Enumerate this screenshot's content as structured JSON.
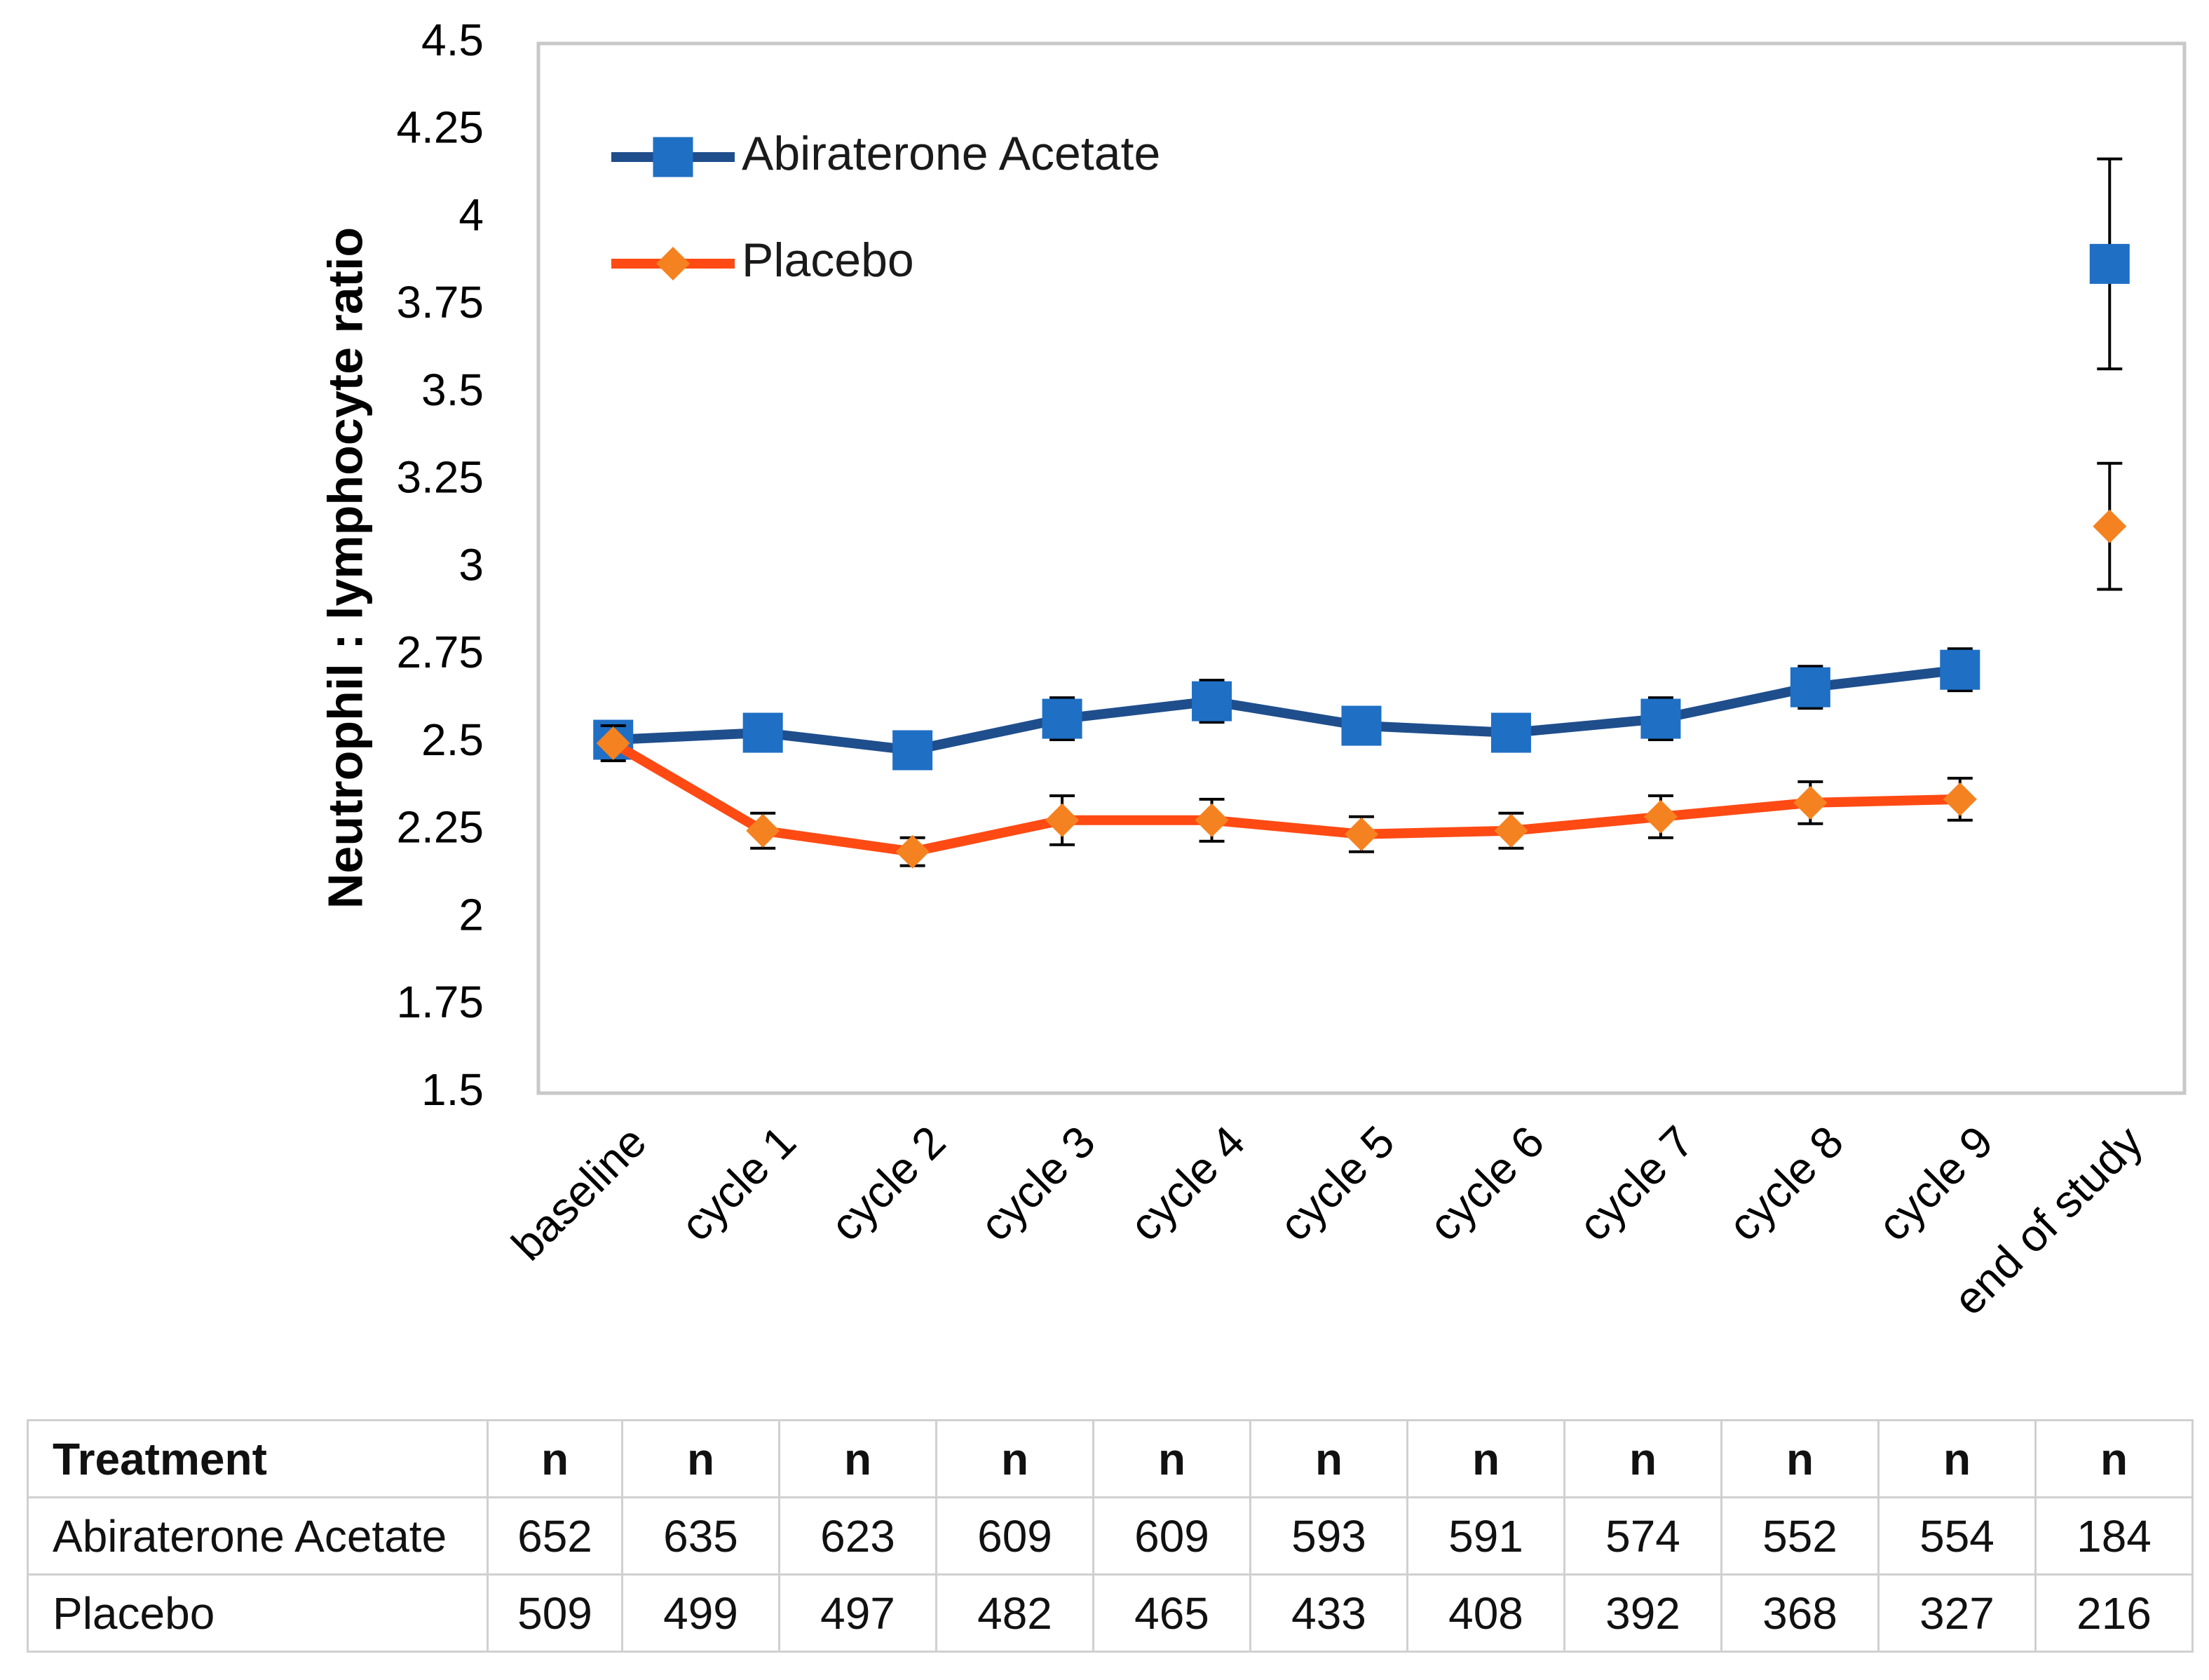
{
  "chart_data": {
    "type": "line",
    "title": "",
    "xlabel": "",
    "ylabel": "Neutrophil : lymphocyte ratio",
    "ylim": [
      1.5,
      4.5
    ],
    "yticks": [
      "4.5",
      "4.25",
      "4",
      "3.75",
      "3.5",
      "3.25",
      "3",
      "2.75",
      "2.5",
      "2.25",
      "2",
      "1.75",
      "1.5"
    ],
    "categories": [
      "baseline",
      "cycle 1",
      "cycle 2",
      "cycle 3",
      "cycle 4",
      "cycle 5",
      "cycle 6",
      "cycle 7",
      "cycle 8",
      "cycle 9",
      "end of study"
    ],
    "grid": false,
    "legend": "top-left",
    "series": [
      {
        "name": "Abiraterone Acetate",
        "color": "#1f4e8c",
        "marker_color": "#1f6fc5",
        "marker": "square",
        "values": [
          2.51,
          2.53,
          2.48,
          2.57,
          2.62,
          2.55,
          2.53,
          2.57,
          2.66,
          2.71,
          3.87
        ],
        "error": [
          0.05,
          0.05,
          0.04,
          0.06,
          0.06,
          0.05,
          0.05,
          0.06,
          0.06,
          0.06,
          0.3
        ],
        "connected_through": 9
      },
      {
        "name": "Placebo",
        "color": "#ff4a14",
        "marker_color": "#f58220",
        "marker": "diamond",
        "values": [
          2.5,
          2.25,
          2.19,
          2.28,
          2.28,
          2.24,
          2.25,
          2.29,
          2.33,
          2.34,
          3.12
        ],
        "error": [
          0.05,
          0.05,
          0.04,
          0.07,
          0.06,
          0.05,
          0.05,
          0.06,
          0.06,
          0.06,
          0.18
        ],
        "connected_through": 9
      }
    ]
  },
  "n_table": {
    "header": [
      "Treatment",
      "n",
      "n",
      "n",
      "n",
      "n",
      "n",
      "n",
      "n",
      "n",
      "n",
      "n"
    ],
    "rows": [
      [
        "Abiraterone Acetate",
        "652",
        "635",
        "623",
        "609",
        "609",
        "593",
        "591",
        "574",
        "552",
        "554",
        "184"
      ],
      [
        "Placebo",
        "509",
        "499",
        "497",
        "482",
        "465",
        "433",
        "408",
        "392",
        "368",
        "327",
        "216"
      ]
    ]
  }
}
